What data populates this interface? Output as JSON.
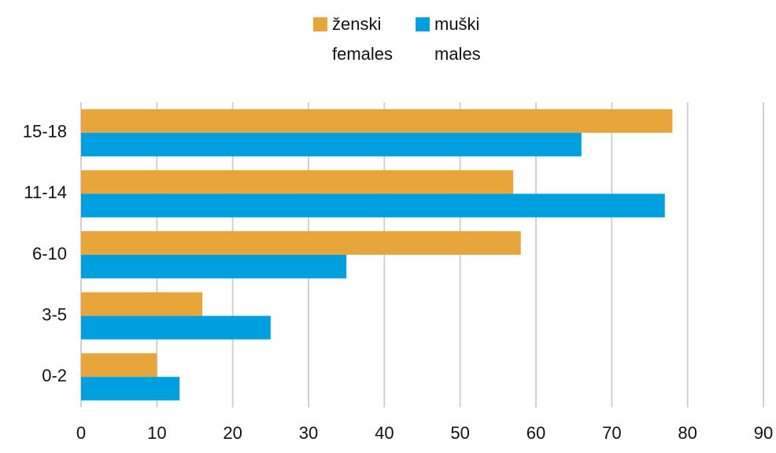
{
  "chart_data": {
    "type": "bar",
    "orientation": "horizontal",
    "categories": [
      "15-18",
      "11-14",
      "6-10",
      "3-5",
      "0-2"
    ],
    "series": [
      {
        "name": [
          "ženski",
          "females"
        ],
        "color": "#e8a53a",
        "values": [
          78,
          57,
          58,
          16,
          10
        ]
      },
      {
        "name": [
          "muški",
          "males"
        ],
        "color": "#00a0e0",
        "values": [
          66,
          77,
          35,
          25,
          13
        ]
      }
    ],
    "xlim": [
      0,
      90
    ],
    "xticks": [
      0,
      10,
      20,
      30,
      40,
      50,
      60,
      70,
      80,
      90
    ],
    "grid": true,
    "legend": "top"
  }
}
